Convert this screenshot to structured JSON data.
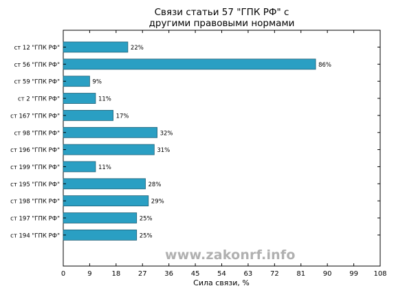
{
  "chart_data": {
    "type": "bar",
    "orientation": "horizontal",
    "title": "Связи статьи 57 \"ГПК РФ\" с\nдругими правовыми нормами",
    "title_lines": [
      "Связи статьи 57 \"ГПК РФ\" с",
      "другими правовыми нормами"
    ],
    "xlabel": "Сила связи, %",
    "ylabel": "",
    "xlim": [
      0,
      108
    ],
    "xticks": [
      "0",
      "9",
      "18",
      "27",
      "36",
      "45",
      "54",
      "63",
      "72",
      "81",
      "90",
      "99",
      "108"
    ],
    "grid": false,
    "legend": "none",
    "bar_color": "#2a9fc3",
    "categories": [
      "ст 12 \"ГПК РФ\"",
      "ст 56 \"ГПК РФ\"",
      "ст 59 \"ГПК РФ\"",
      "ст 2 \"ГПК РФ\"",
      "ст 167 \"ГПК РФ\"",
      "ст 98 \"ГПК РФ\"",
      "ст 196 \"ГПК РФ\"",
      "ст 199 \"ГПК РФ\"",
      "ст 195 \"ГПК РФ\"",
      "ст 198 \"ГПК РФ\"",
      "ст 197 \"ГПК РФ\"",
      "ст 194 \"ГПК РФ\""
    ],
    "values": [
      22,
      86,
      9,
      11,
      17,
      32,
      31,
      11,
      28,
      29,
      25,
      25
    ],
    "value_labels": [
      "22%",
      "86%",
      "9%",
      "11%",
      "17%",
      "32%",
      "31%",
      "11%",
      "28%",
      "29%",
      "25%",
      "25%"
    ]
  },
  "watermark": "www.zakonrf.info"
}
